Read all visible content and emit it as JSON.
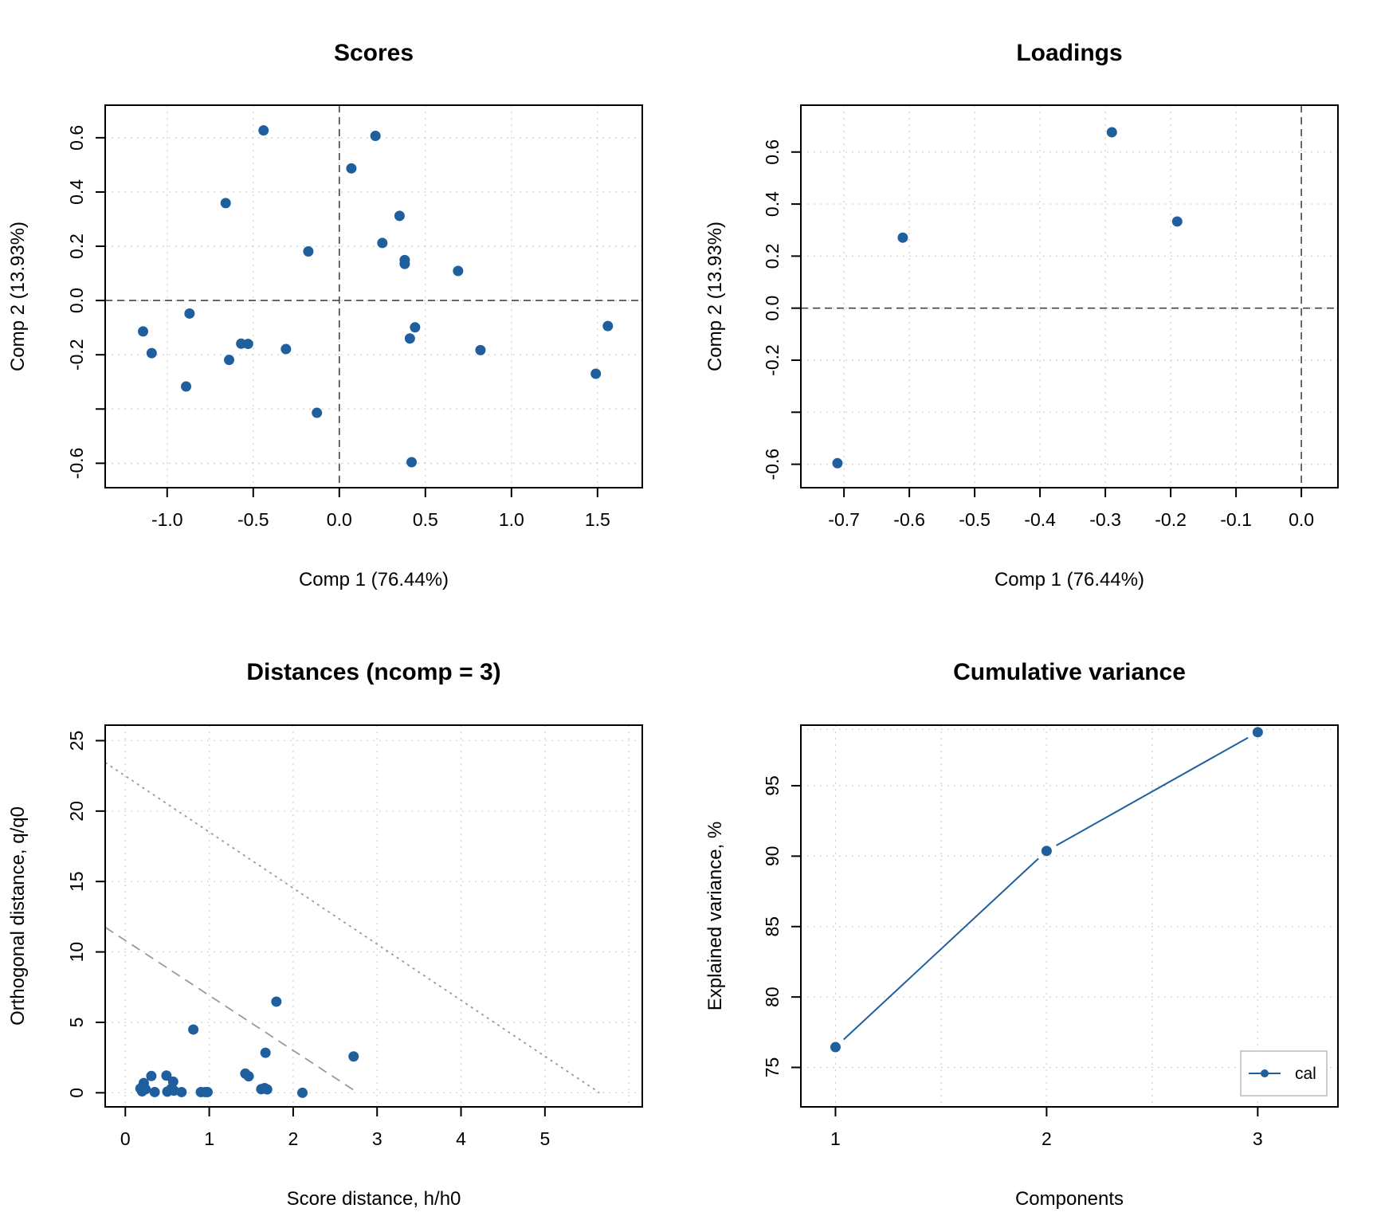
{
  "colors": {
    "point": "#1f5f9e",
    "grid": "#cfcfcf",
    "refline": "#444444",
    "limit": "#999999",
    "axis": "#000000"
  },
  "chart_data": [
    {
      "id": "scores",
      "type": "scatter",
      "title": "Scores",
      "xlabel": "Comp 1 (76.44%)",
      "ylabel": "Comp 2 (13.93%)",
      "xlim": [
        -1.36,
        1.76
      ],
      "ylim": [
        -0.69,
        0.72
      ],
      "xticks": [
        -1.0,
        -0.5,
        0.0,
        0.5,
        1.0,
        1.5
      ],
      "xtick_labels": [
        "-1.0",
        "-0.5",
        "0.0",
        "0.5",
        "1.0",
        "1.5"
      ],
      "yticks": [
        -0.6,
        -0.4,
        -0.2,
        0.0,
        0.2,
        0.4,
        0.6
      ],
      "ytick_labels": [
        "-0.6",
        "",
        "-0.2",
        "0.0",
        "0.2",
        "0.4",
        "0.6"
      ],
      "grid": true,
      "reference_lines": {
        "x": 0,
        "y": 0
      },
      "points": [
        [
          -0.44,
          0.627
        ],
        [
          0.21,
          0.607
        ],
        [
          0.07,
          0.487
        ],
        [
          -0.66,
          0.359
        ],
        [
          0.35,
          0.312
        ],
        [
          0.25,
          0.212
        ],
        [
          -0.18,
          0.181
        ],
        [
          0.38,
          0.149
        ],
        [
          0.38,
          0.135
        ],
        [
          0.69,
          0.109
        ],
        [
          -0.87,
          -0.048
        ],
        [
          -1.14,
          -0.114
        ],
        [
          -1.09,
          -0.194
        ],
        [
          -0.57,
          -0.159
        ],
        [
          -0.53,
          -0.16
        ],
        [
          -0.64,
          -0.219
        ],
        [
          -0.31,
          -0.179
        ],
        [
          -0.89,
          -0.317
        ],
        [
          -0.13,
          -0.414
        ],
        [
          0.44,
          -0.099
        ],
        [
          0.41,
          -0.14
        ],
        [
          0.82,
          -0.183
        ],
        [
          0.42,
          -0.596
        ],
        [
          1.56,
          -0.094
        ],
        [
          1.49,
          -0.27
        ]
      ]
    },
    {
      "id": "loadings",
      "type": "scatter",
      "title": "Loadings",
      "xlabel": "Comp 1 (76.44%)",
      "ylabel": "Comp 2 (13.93%)",
      "xlim": [
        -0.766,
        0.056
      ],
      "ylim": [
        -0.69,
        0.78
      ],
      "xticks": [
        -0.7,
        -0.6,
        -0.5,
        -0.4,
        -0.3,
        -0.2,
        -0.1,
        0.0
      ],
      "xtick_labels": [
        "-0.7",
        "-0.6",
        "-0.5",
        "-0.4",
        "-0.3",
        "-0.2",
        "-0.1",
        "0.0"
      ],
      "yticks": [
        -0.6,
        -0.4,
        -0.2,
        0.0,
        0.2,
        0.4,
        0.6
      ],
      "ytick_labels": [
        "-0.6",
        "",
        "-0.2",
        "0.0",
        "0.2",
        "0.4",
        "0.6"
      ],
      "grid": true,
      "reference_lines": {
        "x": 0,
        "y": 0
      },
      "points": [
        [
          -0.71,
          -0.596
        ],
        [
          -0.61,
          0.271
        ],
        [
          -0.29,
          0.676
        ],
        [
          -0.19,
          0.333
        ]
      ]
    },
    {
      "id": "distances",
      "type": "scatter",
      "title": "Distances (ncomp = 3)",
      "xlabel": "Score distance, h/h0",
      "ylabel": "Orthogonal distance, q/q0",
      "xlim": [
        -0.24,
        6.16
      ],
      "ylim": [
        -1.0,
        26.1
      ],
      "xticks": [
        0,
        1,
        2,
        3,
        4,
        5
      ],
      "xtick_labels": [
        "0",
        "1",
        "2",
        "3",
        "4",
        "5"
      ],
      "xgrid": [
        0,
        1,
        2,
        3,
        4,
        5,
        6
      ],
      "yticks": [
        0,
        5,
        10,
        15,
        20,
        25
      ],
      "ytick_labels": [
        "0",
        "5",
        "10",
        "15",
        "20",
        "25"
      ],
      "grid": true,
      "limit_lines": [
        {
          "name": "extreme-limit",
          "style": "dashed",
          "from": [
            -0.24,
            11.75
          ],
          "to": [
            2.77,
            0
          ]
        },
        {
          "name": "outlier-limit",
          "style": "dotted",
          "from": [
            -0.24,
            23.45
          ],
          "to": [
            5.65,
            0
          ]
        }
      ],
      "points": [
        [
          1.8,
          6.47
        ],
        [
          0.81,
          4.49
        ],
        [
          1.67,
          2.84
        ],
        [
          2.72,
          2.58
        ],
        [
          1.43,
          1.36
        ],
        [
          1.47,
          1.17
        ],
        [
          0.31,
          1.19
        ],
        [
          0.49,
          1.22
        ],
        [
          0.57,
          0.79
        ],
        [
          0.22,
          0.69
        ],
        [
          0.18,
          0.3
        ],
        [
          0.2,
          0.1
        ],
        [
          0.24,
          0.25
        ],
        [
          0.35,
          0.05
        ],
        [
          0.5,
          0.08
        ],
        [
          0.55,
          0.3
        ],
        [
          0.58,
          0.15
        ],
        [
          0.67,
          0.05
        ],
        [
          0.9,
          0.05
        ],
        [
          0.95,
          0.05
        ],
        [
          0.98,
          0.05
        ],
        [
          1.62,
          0.26
        ],
        [
          1.66,
          0.33
        ],
        [
          1.69,
          0.24
        ],
        [
          2.11,
          0.0
        ]
      ]
    },
    {
      "id": "cumvar",
      "type": "line",
      "title": "Cumulative variance",
      "xlabel": "Components",
      "ylabel": "Explained variance, %",
      "xlim": [
        0.836,
        3.38
      ],
      "ylim": [
        72.2,
        99.3
      ],
      "xticks": [
        1,
        2,
        3
      ],
      "xtick_labels": [
        "1",
        "2",
        "3"
      ],
      "xgrid": [
        1,
        1.5,
        2,
        2.5,
        3
      ],
      "yticks": [
        75,
        80,
        85,
        90,
        95
      ],
      "ytick_labels": [
        "75",
        "80",
        "85",
        "90",
        "95"
      ],
      "ygrid": [
        75,
        80,
        85,
        90,
        95,
        99
      ],
      "grid": true,
      "legend": {
        "position": "bottom-right",
        "entries": [
          "cal"
        ]
      },
      "series": [
        {
          "name": "cal",
          "x": [
            1,
            2,
            3
          ],
          "values": [
            76.44,
            90.37,
            98.8
          ]
        }
      ]
    }
  ]
}
